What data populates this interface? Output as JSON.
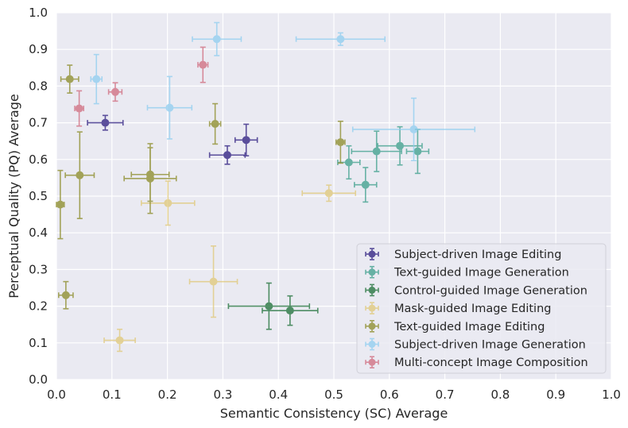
{
  "chart_data": {
    "type": "scatter",
    "title": "",
    "xlabel": "Semantic Consistency (SC) Average",
    "ylabel": "Perceptual Quality (PQ) Average",
    "xlim": [
      0,
      1
    ],
    "ylim": [
      0,
      1
    ],
    "xticks": [
      "0.0",
      "0.1",
      "0.2",
      "0.3",
      "0.4",
      "0.5",
      "0.6",
      "0.7",
      "0.8",
      "0.9",
      "1.0"
    ],
    "yticks": [
      "0.0",
      "0.1",
      "0.2",
      "0.3",
      "0.4",
      "0.5",
      "0.6",
      "0.7",
      "0.8",
      "0.9",
      "1.0"
    ],
    "grid": true,
    "legend_position": "bottom-right",
    "series": [
      {
        "name": "Subject-driven Image Editing",
        "color": "#2a1a7e",
        "points": [
          {
            "x": 0.088,
            "y": 0.7,
            "xerr": 0.032,
            "yerr": 0.02
          },
          {
            "x": 0.308,
            "y": 0.612,
            "xerr": 0.032,
            "yerr": 0.025
          },
          {
            "x": 0.342,
            "y": 0.653,
            "xerr": 0.02,
            "yerr": 0.043
          }
        ]
      },
      {
        "name": "Text-guided Image Generation",
        "color": "#3a9e8a",
        "points": [
          {
            "x": 0.527,
            "y": 0.592,
            "xerr": 0.02,
            "yerr": 0.045
          },
          {
            "x": 0.557,
            "y": 0.531,
            "xerr": 0.02,
            "yerr": 0.047
          },
          {
            "x": 0.577,
            "y": 0.622,
            "xerr": 0.045,
            "yerr": 0.055
          },
          {
            "x": 0.619,
            "y": 0.637,
            "xerr": 0.04,
            "yerr": 0.052
          },
          {
            "x": 0.651,
            "y": 0.622,
            "xerr": 0.02,
            "yerr": 0.06
          }
        ]
      },
      {
        "name": "Control-guided Image Generation",
        "color": "#1a6e35",
        "points": [
          {
            "x": 0.383,
            "y": 0.2,
            "xerr": 0.073,
            "yerr": 0.063
          },
          {
            "x": 0.421,
            "y": 0.188,
            "xerr": 0.05,
            "yerr": 0.04
          }
        ]
      },
      {
        "name": "Mask-guided Image Editing",
        "color": "#e0c877",
        "points": [
          {
            "x": 0.114,
            "y": 0.107,
            "xerr": 0.028,
            "yerr": 0.03
          },
          {
            "x": 0.201,
            "y": 0.481,
            "xerr": 0.048,
            "yerr": 0.06
          },
          {
            "x": 0.283,
            "y": 0.267,
            "xerr": 0.043,
            "yerr": 0.097
          },
          {
            "x": 0.491,
            "y": 0.508,
            "xerr": 0.048,
            "yerr": 0.022
          }
        ]
      },
      {
        "name": "Text-guided Image Editing",
        "color": "#8a8a25",
        "points": [
          {
            "x": 0.007,
            "y": 0.477,
            "xerr": 0.007,
            "yerr": 0.093
          },
          {
            "x": 0.017,
            "y": 0.23,
            "xerr": 0.013,
            "yerr": 0.037
          },
          {
            "x": 0.024,
            "y": 0.819,
            "xerr": 0.016,
            "yerr": 0.038
          },
          {
            "x": 0.042,
            "y": 0.557,
            "xerr": 0.026,
            "yerr": 0.118
          },
          {
            "x": 0.169,
            "y": 0.559,
            "xerr": 0.034,
            "yerr": 0.073
          },
          {
            "x": 0.169,
            "y": 0.548,
            "xerr": 0.047,
            "yerr": 0.095
          },
          {
            "x": 0.286,
            "y": 0.697,
            "xerr": 0.01,
            "yerr": 0.055
          },
          {
            "x": 0.512,
            "y": 0.647,
            "xerr": 0.008,
            "yerr": 0.057
          }
        ]
      },
      {
        "name": "Subject-driven Image Generation",
        "color": "#8ecdf0",
        "points": [
          {
            "x": 0.072,
            "y": 0.819,
            "xerr": 0.01,
            "yerr": 0.067
          },
          {
            "x": 0.204,
            "y": 0.741,
            "xerr": 0.04,
            "yerr": 0.085
          },
          {
            "x": 0.289,
            "y": 0.928,
            "xerr": 0.044,
            "yerr": 0.045
          },
          {
            "x": 0.512,
            "y": 0.928,
            "xerr": 0.08,
            "yerr": 0.017
          },
          {
            "x": 0.644,
            "y": 0.682,
            "xerr": 0.11,
            "yerr": 0.085
          }
        ]
      },
      {
        "name": "Multi-concept Image Composition",
        "color": "#d06b7d",
        "points": [
          {
            "x": 0.041,
            "y": 0.739,
            "xerr": 0.008,
            "yerr": 0.048
          },
          {
            "x": 0.106,
            "y": 0.784,
            "xerr": 0.012,
            "yerr": 0.025
          },
          {
            "x": 0.264,
            "y": 0.858,
            "xerr": 0.009,
            "yerr": 0.048
          }
        ]
      }
    ]
  }
}
